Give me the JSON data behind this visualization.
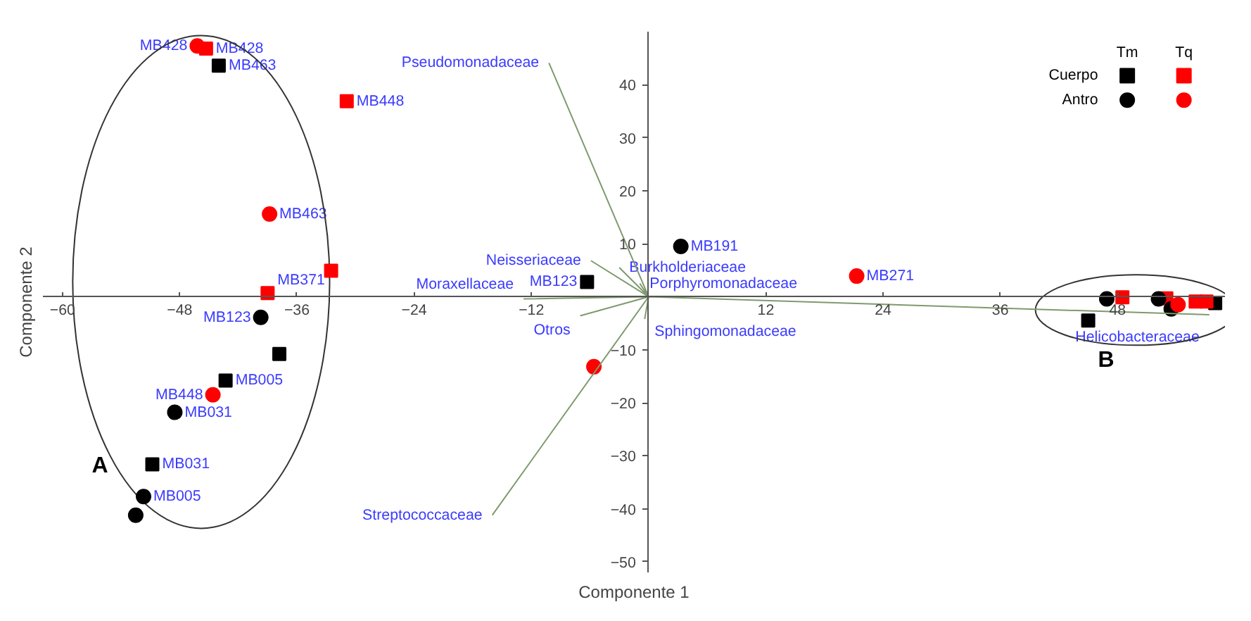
{
  "chart_data": {
    "type": "scatter",
    "xlabel": "Componente 1",
    "ylabel": "Componente 2",
    "xlim": [
      -62,
      59
    ],
    "ylim": [
      -52,
      50
    ],
    "xticks": [
      -60,
      -48,
      -36,
      -24,
      -12,
      12,
      24,
      36,
      48
    ],
    "yticks": [
      -50,
      -40,
      -30,
      -20,
      -10,
      10,
      20,
      30,
      40
    ],
    "grid": false,
    "legend": "top right",
    "annotations": [
      "Tm",
      "Tq",
      "A",
      "B"
    ],
    "series": [
      {
        "name": "Cuerpo",
        "color": "#000000",
        "marker": "square",
        "x": [
          -44.0,
          -37.8,
          -43.3,
          -50.8,
          -6.3,
          45.0,
          58.0
        ],
        "values": [
          43.6,
          -10.8,
          -15.8,
          -31.6,
          2.8,
          -4.5,
          -1.2
        ],
        "value_labels": [
          "MB463",
          null,
          "MB005",
          "MB031",
          "MB123",
          null,
          null
        ]
      },
      {
        "color": "#ff0000",
        "marker": "square",
        "x": [
          -45.3,
          -30.9,
          -32.5,
          -39.0,
          48.5,
          53.0,
          56.0,
          57.1
        ],
        "values": [
          46.8,
          36.9,
          4.9,
          0.7,
          -0.1,
          -0.3,
          -0.9,
          -0.9
        ],
        "value_labels": [
          "MB428",
          "MB448",
          null,
          "MB371",
          null,
          null,
          null,
          null
        ]
      },
      {
        "name": "Antro",
        "color": "#000000",
        "marker": "circle",
        "x": [
          -39.7,
          -48.5,
          -51.7,
          -52.5,
          3.3,
          46.9,
          52.2,
          53.5
        ],
        "values": [
          -3.9,
          -21.8,
          -37.7,
          -41.2,
          9.5,
          -0.4,
          -0.4,
          -2.3
        ],
        "value_labels": [
          "MB123",
          "MB031",
          "MB005",
          null,
          "MB191",
          null,
          null,
          null
        ]
      },
      {
        "color": "#ff0000",
        "marker": "circle",
        "x": [
          -46.2,
          -38.8,
          -44.6,
          21.3,
          -5.6,
          54.2
        ],
        "values": [
          47.3,
          15.6,
          -18.5,
          3.9,
          -13.2,
          -1.5
        ],
        "value_labels": [
          "MB428",
          "MB463",
          "MB448",
          "MB271",
          null,
          null
        ]
      },
      {
        "type": "line",
        "color": "#7f9a6e",
        "x": [
          0,
          -10.2,
          null,
          0,
          -16.0,
          null,
          0,
          57.4,
          null,
          0,
          -3.0,
          null,
          0,
          -5.9,
          null,
          0,
          -0.9,
          null,
          0,
          -12.8,
          null,
          0,
          -7.0,
          null,
          0,
          -0.4
        ],
        "values": [
          0,
          44.1,
          null,
          0,
          -41.2,
          null,
          0,
          -3.4,
          null,
          0,
          5.5,
          null,
          0,
          6.8,
          null,
          0,
          2.5,
          null,
          0,
          -0.4,
          null,
          0,
          -3.6,
          null,
          0,
          -4.2
        ],
        "value_labels": [
          null,
          "Pseudomonadaceae",
          null,
          null,
          "Streptococcaceae",
          null,
          null,
          "Helicobacteraceae",
          null,
          null,
          "Burkholderiaceae",
          null,
          null,
          "Neisseriaceae",
          null,
          null,
          "Porphyromonadaceae",
          null,
          null,
          "Moraxellaceae",
          null,
          null,
          "Otros",
          null,
          null,
          "Sphingomonadaceae"
        ]
      }
    ]
  }
}
